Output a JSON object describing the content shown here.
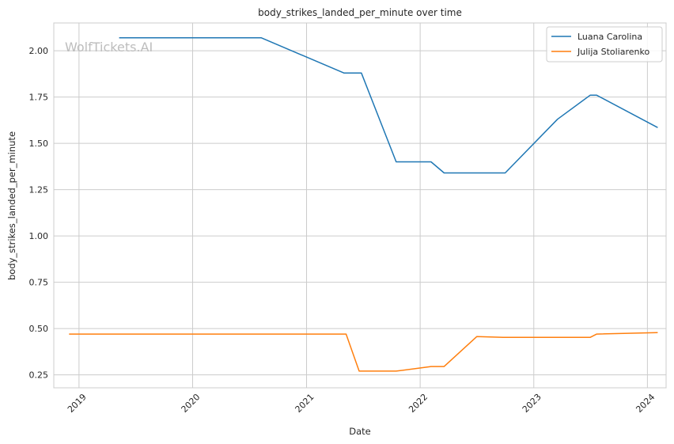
{
  "chart_data": {
    "type": "line",
    "title": "body_strikes_landed_per_minute over time",
    "xlabel": "Date",
    "ylabel": "body_strikes_landed_per_minute",
    "watermark": "WolfTickets.AI",
    "grid": true,
    "legend_position": "top-right",
    "x_ticks": [
      "2019",
      "2020",
      "2021",
      "2022",
      "2023",
      "2024"
    ],
    "y_ticks": [
      "0.25",
      "0.50",
      "0.75",
      "1.00",
      "1.25",
      "1.50",
      "1.75",
      "2.00"
    ],
    "xlim": [
      "2018-10-12",
      "2024-03-01"
    ],
    "ylim": [
      0.18,
      2.15
    ],
    "series": [
      {
        "name": "Luana Carolina",
        "color": "#1f77b4",
        "points": [
          {
            "x": "2019-05-10",
            "y": 2.07
          },
          {
            "x": "2020-08-08",
            "y": 2.07
          },
          {
            "x": "2021-05-01",
            "y": 1.88
          },
          {
            "x": "2021-06-26",
            "y": 1.88
          },
          {
            "x": "2021-10-16",
            "y": 1.4
          },
          {
            "x": "2022-02-05",
            "y": 1.4
          },
          {
            "x": "2022-03-19",
            "y": 1.34
          },
          {
            "x": "2022-10-01",
            "y": 1.34
          },
          {
            "x": "2023-03-18",
            "y": 1.63
          },
          {
            "x": "2023-07-01",
            "y": 1.76
          },
          {
            "x": "2023-07-22",
            "y": 1.76
          },
          {
            "x": "2024-02-03",
            "y": 1.585
          }
        ]
      },
      {
        "name": "Julija Stoliarenko",
        "color": "#ff7f0e",
        "points": [
          {
            "x": "2018-11-30",
            "y": 0.47
          },
          {
            "x": "2021-05-08",
            "y": 0.47
          },
          {
            "x": "2021-06-19",
            "y": 0.27
          },
          {
            "x": "2021-10-16",
            "y": 0.27
          },
          {
            "x": "2022-02-05",
            "y": 0.295
          },
          {
            "x": "2022-03-19",
            "y": 0.295
          },
          {
            "x": "2022-07-02",
            "y": 0.457
          },
          {
            "x": "2022-10-01",
            "y": 0.452
          },
          {
            "x": "2023-07-01",
            "y": 0.452
          },
          {
            "x": "2023-07-22",
            "y": 0.47
          },
          {
            "x": "2024-02-03",
            "y": 0.478
          }
        ]
      }
    ]
  }
}
